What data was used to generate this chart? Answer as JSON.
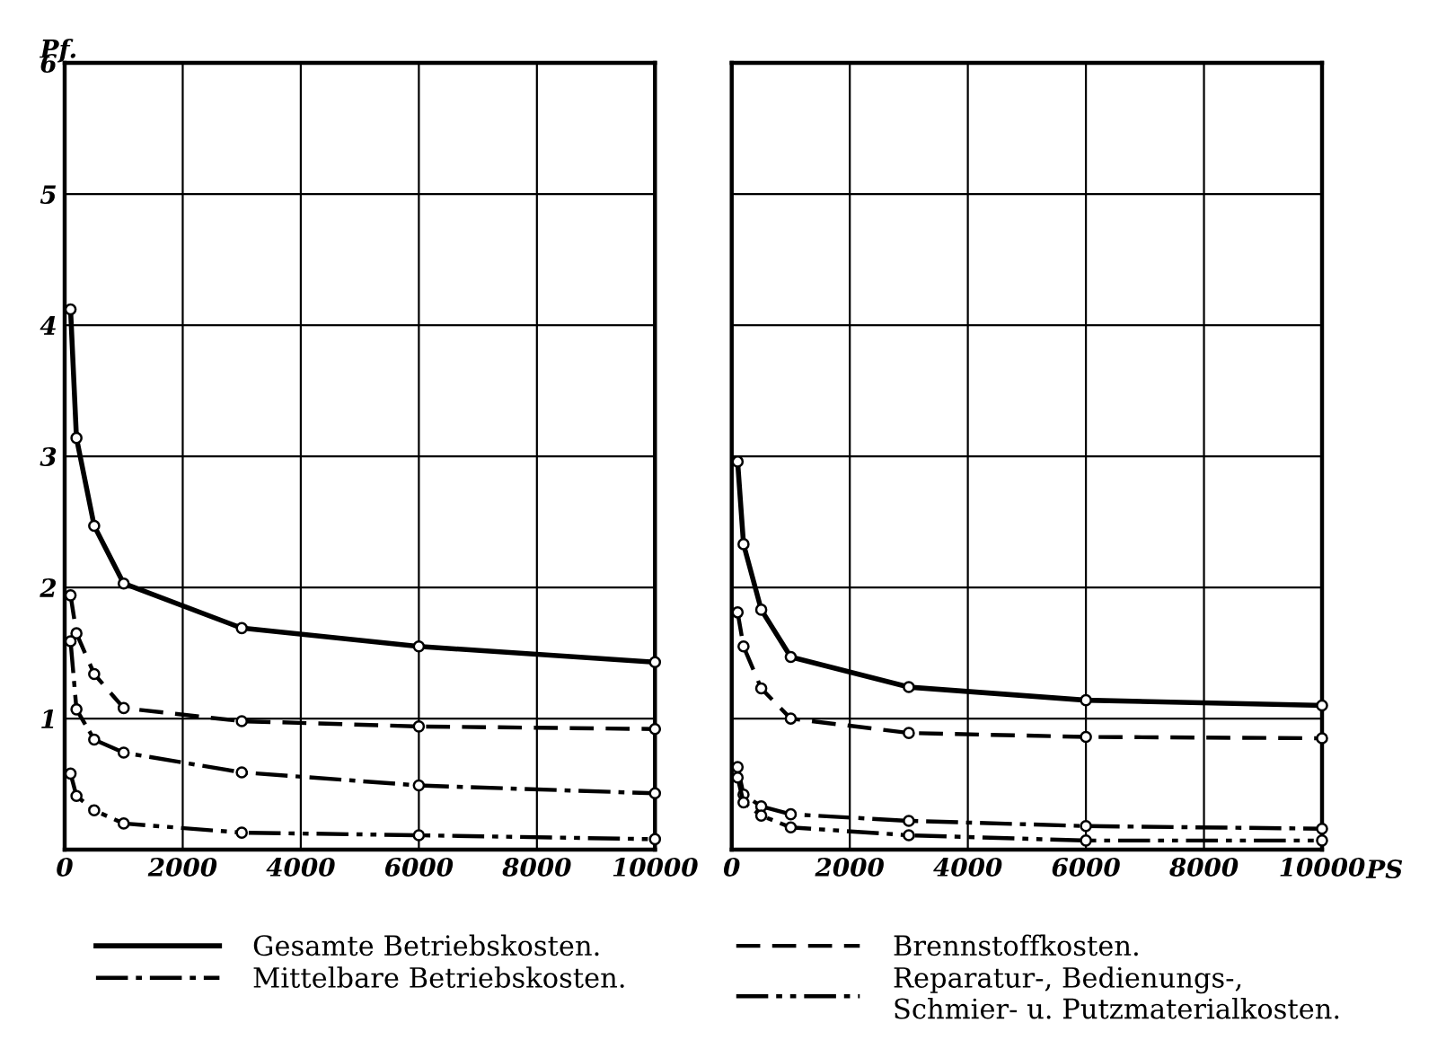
{
  "chart_data": [
    {
      "type": "line",
      "ylabel": "Pf.",
      "x": [
        100,
        200,
        500,
        1000,
        3000,
        6000,
        10000
      ],
      "xlim": [
        0,
        10000
      ],
      "xticks": [
        0,
        2000,
        4000,
        6000,
        8000,
        10000
      ],
      "ylim": [
        0,
        6
      ],
      "yticks": [
        1,
        2,
        3,
        4,
        5,
        6
      ],
      "grid": true,
      "marker": "circle",
      "legend": "bottom",
      "series": [
        {
          "name": "Gesamte Betriebskosten.",
          "color": "#000000",
          "line_style": "solid",
          "values": [
            4.12,
            3.14,
            2.47,
            2.03,
            1.69,
            1.55,
            1.43
          ]
        },
        {
          "name": "Brennstoffkosten.",
          "color": "#000000",
          "line_style": "dashed",
          "values": [
            1.94,
            1.65,
            1.34,
            1.08,
            0.98,
            0.94,
            0.92
          ]
        },
        {
          "name": "Mittelbare Betriebskosten.",
          "color": "#000000",
          "line_style": "dashdot",
          "values": [
            1.59,
            1.07,
            0.84,
            0.74,
            0.59,
            0.49,
            0.43
          ]
        },
        {
          "name": "Reparatur-, Bedienungs-,\nSchmier- u. Putzmaterialkosten.",
          "color": "#000000",
          "line_style": "dashdotdot",
          "values": [
            0.58,
            0.41,
            0.3,
            0.2,
            0.13,
            0.11,
            0.08
          ]
        }
      ]
    },
    {
      "type": "line",
      "xlabel": "PS",
      "x": [
        100,
        200,
        500,
        1000,
        3000,
        6000,
        10000
      ],
      "xlim": [
        0,
        10000
      ],
      "xticks": [
        0,
        2000,
        4000,
        6000,
        8000,
        10000
      ],
      "ylim": [
        0,
        6
      ],
      "yticks": [
        1,
        2,
        3,
        4,
        5,
        6
      ],
      "grid": true,
      "marker": "circle",
      "tick_labels": "x",
      "series": [
        {
          "color": "#000000",
          "line_style": "solid",
          "values": [
            2.96,
            2.33,
            1.83,
            1.47,
            1.24,
            1.14,
            1.1
          ]
        },
        {
          "color": "#000000",
          "line_style": "dashed",
          "values": [
            1.81,
            1.55,
            1.23,
            1.0,
            0.89,
            0.86,
            0.85
          ]
        },
        {
          "color": "#000000",
          "line_style": "dashdot",
          "values": [
            0.63,
            0.42,
            0.33,
            0.27,
            0.22,
            0.18,
            0.16
          ]
        },
        {
          "color": "#000000",
          "line_style": "dashdotdot",
          "values": [
            0.55,
            0.36,
            0.26,
            0.17,
            0.11,
            0.07,
            0.07
          ]
        }
      ]
    }
  ]
}
